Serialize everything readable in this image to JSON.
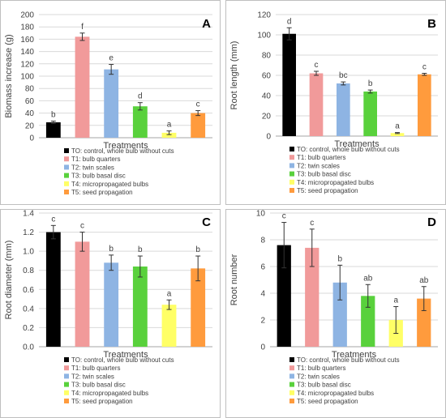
{
  "chart_data": [
    {
      "type": "bar",
      "panel_letter": "A",
      "xlabel": "Treatments",
      "ylabel": "Biomass increase (g)",
      "ylim": [
        0,
        200
      ],
      "yticks": [
        "0",
        "20",
        "40",
        "60",
        "80",
        "100",
        "120",
        "140",
        "160",
        "180",
        "200"
      ],
      "grid": true,
      "legend_position": "bottom",
      "categories": [
        "TO: control, whole bulb without cuts",
        "T1: bulb quarters",
        "T2: twin scales",
        "T3: bulb basal disc",
        "T4: micropropagated bulbs",
        "T5: seed propagation"
      ],
      "values": [
        25,
        164,
        111,
        51,
        8,
        40
      ],
      "errors": [
        2,
        6,
        8,
        6,
        3,
        4
      ],
      "letters": [
        "b",
        "f",
        "e",
        "d",
        "a",
        "c"
      ]
    },
    {
      "type": "bar",
      "panel_letter": "B",
      "xlabel": "Treatments",
      "ylabel": "Root length (mm)",
      "ylim": [
        0,
        120
      ],
      "yticks": [
        "0",
        "20",
        "40",
        "60",
        "80",
        "100",
        "120"
      ],
      "grid": true,
      "legend_position": "bottom",
      "categories": [
        "TO: control, whole bulb without cuts",
        "T1: bulb quarters",
        "T2: twin scales",
        "T3: bulb basal disc",
        "T4: micropropagated bulbs",
        "T5: seed propagation"
      ],
      "values": [
        101,
        62,
        52,
        44,
        3,
        61
      ],
      "errors": [
        6,
        2,
        1.5,
        1.5,
        0.5,
        1
      ],
      "letters": [
        "d",
        "c",
        "bc",
        "b",
        "a",
        "c"
      ]
    },
    {
      "type": "bar",
      "panel_letter": "C",
      "xlabel": "Treatments",
      "ylabel": "Root diameter (mm)",
      "ylim": [
        0,
        1.4
      ],
      "yticks": [
        "0.0",
        "0.2",
        "0.4",
        "0.6",
        "0.8",
        "1.0",
        "1.2",
        "1.4"
      ],
      "grid": true,
      "legend_position": "bottom",
      "categories": [
        "TO: control, whole bulb without cuts",
        "T1: bulb quarters",
        "T2: twin scales",
        "T3: bulb basal disc",
        "T4: micropropagated bulbs",
        "T5: seed propagation"
      ],
      "values": [
        1.2,
        1.1,
        0.88,
        0.84,
        0.44,
        0.82
      ],
      "errors": [
        0.07,
        0.1,
        0.08,
        0.11,
        0.05,
        0.13
      ],
      "letters": [
        "c",
        "c",
        "b",
        "b",
        "a",
        "b"
      ]
    },
    {
      "type": "bar",
      "panel_letter": "D",
      "xlabel": "Treatments",
      "ylabel": "Root number",
      "ylim": [
        0,
        10
      ],
      "yticks": [
        "0",
        "2",
        "4",
        "6",
        "8",
        "10"
      ],
      "grid": true,
      "legend_position": "bottom",
      "categories": [
        "TO: control, whole bulb without cuts",
        "T1: bulb quarters",
        "T2: twin scales",
        "T3: bulb basal disc",
        "T4: micropropagated bulbs",
        "T5: seed propagation"
      ],
      "values": [
        7.6,
        7.4,
        4.8,
        3.8,
        2.0,
        3.6
      ],
      "errors": [
        1.7,
        1.4,
        1.3,
        0.85,
        1.0,
        0.9
      ],
      "letters": [
        "c",
        "c",
        "b",
        "ab",
        "a",
        "ab"
      ]
    }
  ],
  "colors": [
    "#000000",
    "#f19a9a",
    "#8eb4e3",
    "#59d13c",
    "#ffff66",
    "#ff9b3d"
  ],
  "grid_color": "#d9d9d9",
  "border_color": "#bfbfbf"
}
